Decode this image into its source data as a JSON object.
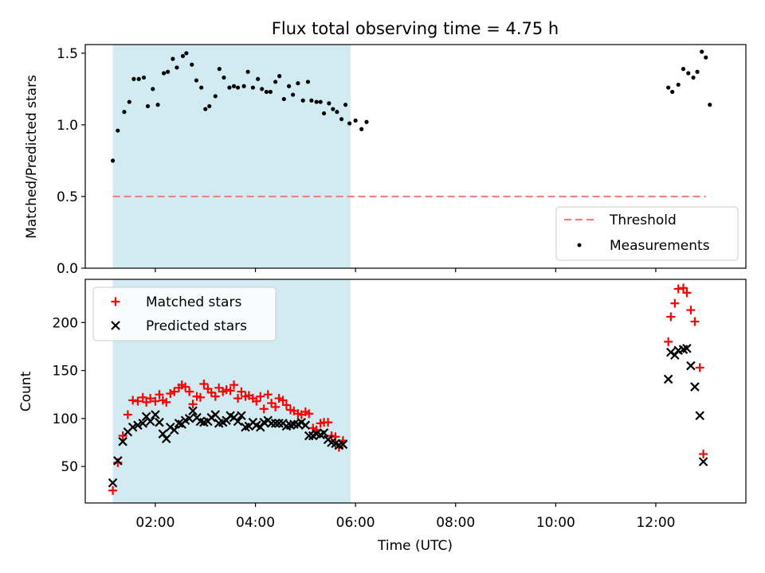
{
  "title": "Flux total observing time = 4.75 h",
  "colors": {
    "shade": "#add8e6",
    "threshold": "#f08080",
    "matched": "#ff0000",
    "predicted": "#000000",
    "measurement": "#000000"
  },
  "chart_data": [
    {
      "type": "scatter",
      "title": "Flux total observing time = 4.75 h",
      "xlabel": "",
      "ylabel": "Matched/Predicted stars",
      "x_unit": "hours UTC",
      "xlim": [
        0.6,
        13.8
      ],
      "ylim": [
        0,
        1.56
      ],
      "yticks": [
        0.0,
        0.5,
        1.0,
        1.5
      ],
      "ytick_labels": [
        "0.0",
        "0.5",
        "1.0",
        "1.5"
      ],
      "shaded_interval": [
        1.15,
        5.9
      ],
      "threshold": {
        "name": "Threshold",
        "y": 0.5,
        "x": [
          1.15,
          13.0
        ],
        "style": "dashed"
      },
      "legend_position": "lower right",
      "series": [
        {
          "name": "Measurements",
          "points": [
            [
              1.15,
              0.75
            ],
            [
              1.25,
              0.96
            ],
            [
              1.38,
              1.09
            ],
            [
              1.48,
              1.16
            ],
            [
              1.57,
              1.32
            ],
            [
              1.67,
              1.32
            ],
            [
              1.77,
              1.33
            ],
            [
              1.85,
              1.13
            ],
            [
              1.95,
              1.25
            ],
            [
              2.05,
              1.14
            ],
            [
              2.17,
              1.36
            ],
            [
              2.25,
              1.37
            ],
            [
              2.35,
              1.46
            ],
            [
              2.43,
              1.4
            ],
            [
              2.55,
              1.48
            ],
            [
              2.62,
              1.5
            ],
            [
              2.73,
              1.42
            ],
            [
              2.82,
              1.31
            ],
            [
              2.92,
              1.26
            ],
            [
              3.0,
              1.11
            ],
            [
              3.08,
              1.13
            ],
            [
              3.2,
              1.2
            ],
            [
              3.28,
              1.39
            ],
            [
              3.37,
              1.33
            ],
            [
              3.48,
              1.26
            ],
            [
              3.57,
              1.27
            ],
            [
              3.65,
              1.26
            ],
            [
              3.77,
              1.27
            ],
            [
              3.85,
              1.37
            ],
            [
              3.95,
              1.26
            ],
            [
              4.05,
              1.32
            ],
            [
              4.13,
              1.25
            ],
            [
              4.22,
              1.23
            ],
            [
              4.3,
              1.23
            ],
            [
              4.4,
              1.3
            ],
            [
              4.48,
              1.34
            ],
            [
              4.57,
              1.18
            ],
            [
              4.67,
              1.27
            ],
            [
              4.75,
              1.21
            ],
            [
              4.85,
              1.29
            ],
            [
              4.95,
              1.17
            ],
            [
              5.05,
              1.3
            ],
            [
              5.12,
              1.17
            ],
            [
              5.22,
              1.16
            ],
            [
              5.3,
              1.16
            ],
            [
              5.37,
              1.08
            ],
            [
              5.47,
              1.15
            ],
            [
              5.55,
              1.11
            ],
            [
              5.63,
              1.09
            ],
            [
              5.72,
              1.04
            ],
            [
              5.8,
              1.14
            ],
            [
              5.88,
              1.01
            ],
            [
              6.0,
              1.03
            ],
            [
              6.12,
              0.97
            ],
            [
              6.22,
              1.02
            ],
            [
              12.25,
              1.26
            ],
            [
              12.33,
              1.23
            ],
            [
              12.45,
              1.28
            ],
            [
              12.55,
              1.39
            ],
            [
              12.65,
              1.36
            ],
            [
              12.75,
              1.33
            ],
            [
              12.83,
              1.37
            ],
            [
              12.92,
              1.51
            ],
            [
              13.0,
              1.47
            ],
            [
              13.08,
              1.14
            ]
          ]
        }
      ]
    },
    {
      "type": "scatter",
      "xlabel": "Time (UTC)",
      "ylabel": "Count",
      "x_unit": "hours UTC",
      "xlim": [
        0.6,
        13.8
      ],
      "ylim": [
        12,
        245
      ],
      "xticks": [
        2,
        4,
        6,
        8,
        10,
        12
      ],
      "xtick_labels": [
        "02:00",
        "04:00",
        "06:00",
        "08:00",
        "10:00",
        "12:00"
      ],
      "yticks": [
        50,
        100,
        150,
        200
      ],
      "ytick_labels": [
        "50",
        "100",
        "150",
        "200"
      ],
      "shaded_interval": [
        1.15,
        5.9
      ],
      "legend_position": "upper left",
      "series": [
        {
          "name": "Matched stars",
          "marker": "plus",
          "points": [
            [
              1.15,
              25
            ],
            [
              1.25,
              54
            ],
            [
              1.35,
              82
            ],
            [
              1.45,
              104
            ],
            [
              1.55,
              119
            ],
            [
              1.65,
              118
            ],
            [
              1.75,
              122
            ],
            [
              1.82,
              117
            ],
            [
              1.9,
              121
            ],
            [
              2.0,
              118
            ],
            [
              2.08,
              125
            ],
            [
              2.15,
              119
            ],
            [
              2.22,
              117
            ],
            [
              2.3,
              126
            ],
            [
              2.38,
              128
            ],
            [
              2.47,
              132
            ],
            [
              2.53,
              135
            ],
            [
              2.6,
              133
            ],
            [
              2.68,
              128
            ],
            [
              2.75,
              115
            ],
            [
              2.83,
              123
            ],
            [
              2.9,
              122
            ],
            [
              2.97,
              136
            ],
            [
              3.05,
              131
            ],
            [
              3.12,
              127
            ],
            [
              3.2,
              123
            ],
            [
              3.27,
              132
            ],
            [
              3.35,
              128
            ],
            [
              3.42,
              130
            ],
            [
              3.5,
              129
            ],
            [
              3.57,
              135
            ],
            [
              3.65,
              121
            ],
            [
              3.72,
              128
            ],
            [
              3.8,
              123
            ],
            [
              3.87,
              124
            ],
            [
              3.95,
              121
            ],
            [
              4.02,
              118
            ],
            [
              4.1,
              123
            ],
            [
              4.17,
              110
            ],
            [
              4.25,
              125
            ],
            [
              4.32,
              116
            ],
            [
              4.4,
              112
            ],
            [
              4.47,
              121
            ],
            [
              4.55,
              119
            ],
            [
              4.62,
              114
            ],
            [
              4.7,
              109
            ],
            [
              4.77,
              108
            ],
            [
              4.85,
              105
            ],
            [
              4.92,
              104
            ],
            [
              5.0,
              107
            ],
            [
              5.07,
              105
            ],
            [
              5.15,
              90
            ],
            [
              5.22,
              88
            ],
            [
              5.3,
              95
            ],
            [
              5.37,
              96
            ],
            [
              5.45,
              96
            ],
            [
              5.52,
              82
            ],
            [
              5.6,
              81
            ],
            [
              5.67,
              70
            ],
            [
              5.75,
              77
            ],
            [
              12.25,
              180
            ],
            [
              12.3,
              206
            ],
            [
              12.38,
              220
            ],
            [
              12.45,
              235
            ],
            [
              12.55,
              236
            ],
            [
              12.62,
              231
            ],
            [
              12.7,
              213
            ],
            [
              12.78,
              201
            ],
            [
              12.88,
              153
            ],
            [
              12.95,
              63
            ]
          ]
        },
        {
          "name": "Predicted stars",
          "marker": "x",
          "points": [
            [
              1.15,
              33
            ],
            [
              1.25,
              56
            ],
            [
              1.35,
              76
            ],
            [
              1.45,
              86
            ],
            [
              1.55,
              91
            ],
            [
              1.65,
              93
            ],
            [
              1.75,
              95
            ],
            [
              1.82,
              102
            ],
            [
              1.9,
              97
            ],
            [
              2.0,
              104
            ],
            [
              2.08,
              96
            ],
            [
              2.15,
              84
            ],
            [
              2.22,
              79
            ],
            [
              2.3,
              91
            ],
            [
              2.38,
              88
            ],
            [
              2.47,
              95
            ],
            [
              2.53,
              94
            ],
            [
              2.6,
              98
            ],
            [
              2.68,
              100
            ],
            [
              2.75,
              108
            ],
            [
              2.83,
              101
            ],
            [
              2.9,
              97
            ],
            [
              2.97,
              96
            ],
            [
              3.05,
              97
            ],
            [
              3.12,
              101
            ],
            [
              3.2,
              104
            ],
            [
              3.27,
              95
            ],
            [
              3.35,
              96
            ],
            [
              3.42,
              98
            ],
            [
              3.5,
              103
            ],
            [
              3.57,
              101
            ],
            [
              3.65,
              97
            ],
            [
              3.72,
              103
            ],
            [
              3.8,
              91
            ],
            [
              3.87,
              92
            ],
            [
              3.95,
              96
            ],
            [
              4.02,
              93
            ],
            [
              4.1,
              91
            ],
            [
              4.17,
              96
            ],
            [
              4.25,
              98
            ],
            [
              4.32,
              95
            ],
            [
              4.4,
              95
            ],
            [
              4.47,
              95
            ],
            [
              4.55,
              95
            ],
            [
              4.62,
              92
            ],
            [
              4.7,
              93
            ],
            [
              4.77,
              94
            ],
            [
              4.85,
              94
            ],
            [
              4.92,
              96
            ],
            [
              5.0,
              93
            ],
            [
              5.07,
              82
            ],
            [
              5.15,
              82
            ],
            [
              5.22,
              84
            ],
            [
              5.3,
              83
            ],
            [
              5.37,
              85
            ],
            [
              5.45,
              78
            ],
            [
              5.52,
              75
            ],
            [
              5.6,
              74
            ],
            [
              5.67,
              72
            ],
            [
              5.75,
              73
            ],
            [
              12.25,
              141
            ],
            [
              12.3,
              169
            ],
            [
              12.38,
              166
            ],
            [
              12.45,
              171
            ],
            [
              12.55,
              172
            ],
            [
              12.62,
              173
            ],
            [
              12.7,
              155
            ],
            [
              12.78,
              133
            ],
            [
              12.88,
              103
            ],
            [
              12.95,
              55
            ]
          ]
        }
      ]
    }
  ]
}
